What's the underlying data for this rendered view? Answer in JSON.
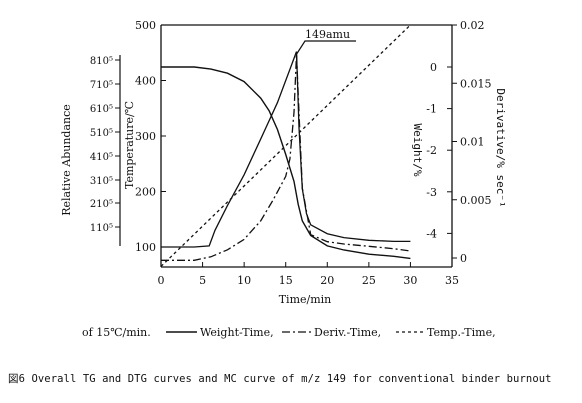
{
  "chart_data": {
    "type": "line",
    "xlabel": "Time/min",
    "x_ticks": [
      "0",
      "5",
      "10",
      "15",
      "20",
      "25",
      "30",
      "35"
    ],
    "xlim": [
      0,
      35
    ],
    "axes": {
      "abundance": {
        "label": "Relative Abundance",
        "ticks": [
          "110⁵",
          "210⁵",
          "310⁵",
          "410⁵",
          "510⁵",
          "610⁵",
          "710⁵",
          "810⁵"
        ]
      },
      "temperature": {
        "label": "Temperature/℃",
        "ticks": [
          "100",
          "200",
          "300",
          "400",
          "500"
        ],
        "ylim": [
          100,
          500
        ]
      },
      "weight": {
        "label": "Weight/%",
        "ticks": [
          "0",
          "-1",
          "-2",
          "-3",
          "-4"
        ]
      },
      "derivative": {
        "label": "Derivative/% sec⁻¹",
        "ticks": [
          "0.02",
          "0.015",
          "0.01",
          "0.005",
          "0"
        ]
      }
    },
    "series": [
      {
        "name": "Weight-Time",
        "style": "solid",
        "x": [
          0,
          4,
          6,
          8,
          10,
          12,
          13,
          14,
          15,
          16,
          16.5,
          17,
          18,
          20,
          22,
          25,
          28,
          30
        ],
        "weight": [
          0,
          0,
          -0.05,
          -0.15,
          -0.35,
          -0.75,
          -1.05,
          -1.5,
          -2.1,
          -2.75,
          -3.3,
          -3.7,
          -4.05,
          -4.3,
          -4.4,
          -4.5,
          -4.55,
          -4.6
        ]
      },
      {
        "name": "Deriv.-Time",
        "style": "dash-dot",
        "x": [
          0,
          4,
          6,
          8,
          10,
          12,
          13.5,
          15,
          15.5,
          16,
          16.3,
          16.6,
          17,
          18,
          20,
          22,
          25,
          28,
          30
        ],
        "derivative": [
          -0.0002,
          -0.0002,
          0.0001,
          0.0007,
          0.0016,
          0.0032,
          0.005,
          0.007,
          0.0085,
          0.0125,
          0.0175,
          0.0125,
          0.006,
          0.002,
          0.0014,
          0.0012,
          0.001,
          0.0008,
          0.0006
        ]
      },
      {
        "name": "Temp.-Time",
        "style": "dashed",
        "x": [
          0,
          30
        ],
        "temperature": [
          65,
          500
        ]
      },
      {
        "name": "149amu",
        "style": "solid",
        "x": [
          0,
          4,
          5.8,
          6.5,
          8,
          10,
          12,
          14,
          15.5,
          16.3,
          16.6,
          17,
          17.5,
          18,
          20,
          22,
          25,
          28,
          30
        ],
        "temperature": [
          100,
          100,
          102,
          130,
          175,
          230,
          295,
          360,
          420,
          452,
          315,
          205,
          160,
          140,
          124,
          117,
          112,
          110,
          110
        ]
      }
    ],
    "annotations": [
      "149amu"
    ],
    "legend": {
      "prefix": "of 15℃/min.",
      "items": [
        "Weight-Time,",
        "Deriv.-Time,",
        "Temp.-Time,"
      ]
    }
  },
  "caption": "図6  Overall TG and DTG curves and MC curve of m/z 149 for conventional binder burnout"
}
